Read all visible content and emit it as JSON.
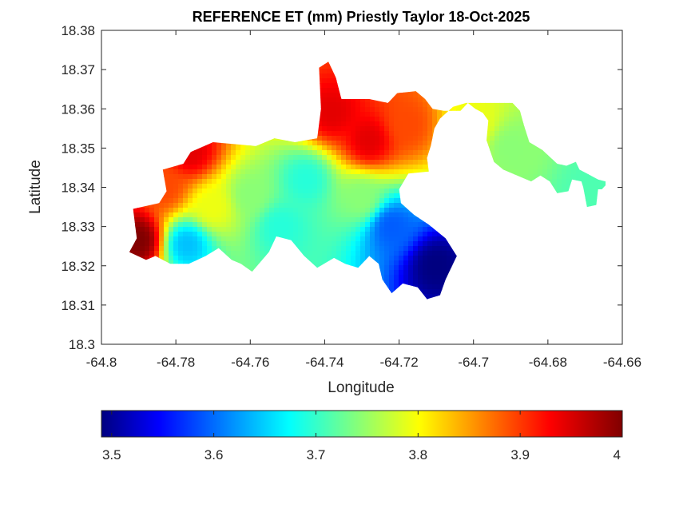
{
  "chart_data": {
    "type": "heatmap",
    "title": "REFERENCE ET (mm) Priestly Taylor 18-Oct-2025",
    "xlabel": "Longitude",
    "ylabel": "Latitude",
    "xlim": [
      -64.8,
      -64.66
    ],
    "ylim": [
      18.3,
      18.38
    ],
    "xticks": [
      -64.8,
      -64.78,
      -64.76,
      -64.74,
      -64.72,
      -64.7,
      -64.68,
      -64.66
    ],
    "xtick_labels": [
      "-64.8",
      "-64.78",
      "-64.76",
      "-64.74",
      "-64.72",
      "-64.7",
      "-64.68",
      "-64.66"
    ],
    "yticks": [
      18.3,
      18.31,
      18.32,
      18.33,
      18.34,
      18.35,
      18.36,
      18.37,
      18.38
    ],
    "ytick_labels": [
      "18.3",
      "18.31",
      "18.32",
      "18.33",
      "18.34",
      "18.35",
      "18.36",
      "18.37",
      "18.38"
    ],
    "colormap": "jet",
    "clim": [
      3.49,
      4.0
    ],
    "colorbar": {
      "orientation": "horizontal",
      "location": "below",
      "ticks": [
        3.5,
        3.6,
        3.7,
        3.8,
        3.9,
        4.0
      ],
      "tick_labels": [
        "3.5",
        "3.6",
        "3.7",
        "3.8",
        "3.9",
        "4"
      ]
    },
    "grid": false,
    "region_outline": [
      [
        -64.7925,
        18.3235
      ],
      [
        -64.7905,
        18.327
      ],
      [
        -64.7915,
        18.3345
      ],
      [
        -64.7845,
        18.336
      ],
      [
        -64.7825,
        18.339
      ],
      [
        -64.7835,
        18.3445
      ],
      [
        -64.778,
        18.346
      ],
      [
        -64.776,
        18.349
      ],
      [
        -64.77,
        18.3515
      ],
      [
        -64.7585,
        18.3505
      ],
      [
        -64.7535,
        18.3525
      ],
      [
        -64.748,
        18.3515
      ],
      [
        -64.742,
        18.3525
      ],
      [
        -64.741,
        18.36
      ],
      [
        -64.7415,
        18.3705
      ],
      [
        -64.739,
        18.372
      ],
      [
        -64.737,
        18.368
      ],
      [
        -64.7355,
        18.3625
      ],
      [
        -64.728,
        18.3625
      ],
      [
        -64.723,
        18.3615
      ],
      [
        -64.7205,
        18.364
      ],
      [
        -64.7155,
        18.3645
      ],
      [
        -64.713,
        18.3625
      ],
      [
        -64.711,
        18.36
      ],
      [
        -64.708,
        18.3595
      ],
      [
        -64.7035,
        18.3595
      ],
      [
        -64.7015,
        18.3615
      ],
      [
        -64.6995,
        18.36
      ],
      [
        -64.6975,
        18.359
      ],
      [
        -64.696,
        18.357
      ],
      [
        -64.6965,
        18.352
      ],
      [
        -64.6945,
        18.3465
      ],
      [
        -64.692,
        18.3445
      ],
      [
        -64.687,
        18.3425
      ],
      [
        -64.6845,
        18.3415
      ],
      [
        -64.682,
        18.343
      ],
      [
        -64.6795,
        18.3415
      ],
      [
        -64.6775,
        18.3385
      ],
      [
        -64.6745,
        18.339
      ],
      [
        -64.6735,
        18.342
      ],
      [
        -64.671,
        18.3415
      ],
      [
        -64.6705,
        18.34
      ],
      [
        -64.6695,
        18.335
      ],
      [
        -64.667,
        18.3355
      ],
      [
        -64.6665,
        18.3395
      ],
      [
        -64.6655,
        18.3395
      ],
      [
        -64.6645,
        18.3405
      ],
      [
        -64.6645,
        18.3415
      ],
      [
        -64.6665,
        18.342
      ],
      [
        -64.6695,
        18.3435
      ],
      [
        -64.6715,
        18.3445
      ],
      [
        -64.6725,
        18.3465
      ],
      [
        -64.675,
        18.3455
      ],
      [
        -64.6775,
        18.346
      ],
      [
        -64.6815,
        18.3495
      ],
      [
        -64.685,
        18.3515
      ],
      [
        -64.6865,
        18.356
      ],
      [
        -64.6875,
        18.3595
      ],
      [
        -64.6895,
        18.3615
      ],
      [
        -64.6985,
        18.3615
      ],
      [
        -64.702,
        18.3615
      ],
      [
        -64.7055,
        18.3605
      ],
      [
        -64.709,
        18.3575
      ],
      [
        -64.7105,
        18.355
      ],
      [
        -64.7115,
        18.3505
      ],
      [
        -64.7125,
        18.3475
      ],
      [
        -64.712,
        18.344
      ],
      [
        -64.7175,
        18.3435
      ],
      [
        -64.72,
        18.3395
      ],
      [
        -64.7195,
        18.336
      ],
      [
        -64.716,
        18.333
      ],
      [
        -64.712,
        18.3305
      ],
      [
        -64.7075,
        18.327
      ],
      [
        -64.7045,
        18.3225
      ],
      [
        -64.7075,
        18.3165
      ],
      [
        -64.709,
        18.3125
      ],
      [
        -64.7125,
        18.3115
      ],
      [
        -64.715,
        18.3145
      ],
      [
        -64.719,
        18.3155
      ],
      [
        -64.722,
        18.313
      ],
      [
        -64.7245,
        18.3165
      ],
      [
        -64.7255,
        18.3205
      ],
      [
        -64.728,
        18.3225
      ],
      [
        -64.731,
        18.3195
      ],
      [
        -64.7345,
        18.3205
      ],
      [
        -64.7375,
        18.322
      ],
      [
        -64.742,
        18.3195
      ],
      [
        -64.7455,
        18.3225
      ],
      [
        -64.749,
        18.3265
      ],
      [
        -64.753,
        18.3275
      ],
      [
        -64.755,
        18.3235
      ],
      [
        -64.7595,
        18.3185
      ],
      [
        -64.7625,
        18.3205
      ],
      [
        -64.765,
        18.3215
      ],
      [
        -64.7685,
        18.3245
      ],
      [
        -64.772,
        18.3225
      ],
      [
        -64.7765,
        18.3205
      ],
      [
        -64.7815,
        18.3205
      ],
      [
        -64.7855,
        18.3225
      ],
      [
        -64.788,
        18.3215
      ],
      [
        -64.7925,
        18.3235
      ]
    ],
    "field_hotspots": [
      {
        "lon": -64.79,
        "lat": 18.3265,
        "et": 4.0
      },
      {
        "lon": -64.783,
        "lat": 18.34,
        "et": 3.9
      },
      {
        "lon": -64.777,
        "lat": 18.3255,
        "et": 3.65
      },
      {
        "lon": -64.776,
        "lat": 18.349,
        "et": 3.95
      },
      {
        "lon": -64.77,
        "lat": 18.335,
        "et": 3.8
      },
      {
        "lon": -64.76,
        "lat": 18.338,
        "et": 3.75
      },
      {
        "lon": -64.752,
        "lat": 18.33,
        "et": 3.7
      },
      {
        "lon": -64.745,
        "lat": 18.342,
        "et": 3.7
      },
      {
        "lon": -64.738,
        "lat": 18.359,
        "et": 3.95
      },
      {
        "lon": -64.728,
        "lat": 18.352,
        "et": 3.95
      },
      {
        "lon": -64.73,
        "lat": 18.337,
        "et": 3.75
      },
      {
        "lon": -64.718,
        "lat": 18.356,
        "et": 3.9
      },
      {
        "lon": -64.722,
        "lat": 18.33,
        "et": 3.6
      },
      {
        "lon": -64.71,
        "lat": 18.32,
        "et": 3.49
      },
      {
        "lon": -64.7,
        "lat": 18.356,
        "et": 3.8
      },
      {
        "lon": -64.69,
        "lat": 18.35,
        "et": 3.75
      },
      {
        "lon": -64.668,
        "lat": 18.339,
        "et": 3.72
      }
    ]
  }
}
